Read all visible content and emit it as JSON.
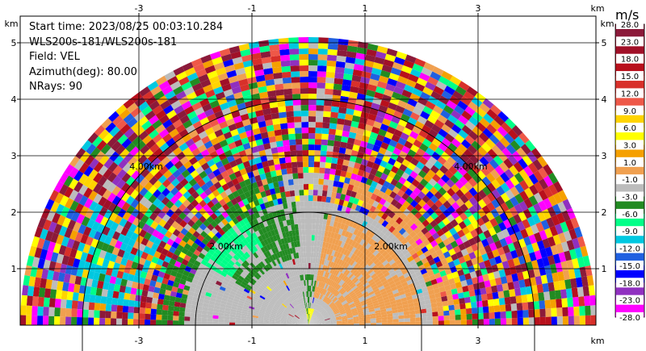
{
  "header": {
    "start_time": "Start time: 2023/08/25 00:03:10.284",
    "instrument": "WLS200s-181/WLS200s-181",
    "field": "Field: VEL",
    "azimuth": "Azimuth(deg): 80.00",
    "nrays": "NRays: 90"
  },
  "axes": {
    "unit": "km",
    "x_ticks": [
      "-3",
      "-1",
      "1",
      "3"
    ],
    "y_ticks": [
      "1",
      "2",
      "3",
      "4",
      "5"
    ]
  },
  "range_rings": [
    "2.00km",
    "2.00km",
    "4.00km",
    "4.00km"
  ],
  "colorbar": {
    "unit": "m/s",
    "levels": [
      {
        "label": "28.0",
        "color": "#8b1a3a"
      },
      {
        "label": "23.0",
        "color": "#a01028"
      },
      {
        "label": "18.0",
        "color": "#b8101c"
      },
      {
        "label": "15.0",
        "color": "#d8302a"
      },
      {
        "label": "12.0",
        "color": "#ee5848"
      },
      {
        "label": "9.0",
        "color": "#ffd400"
      },
      {
        "label": "6.0",
        "color": "#ffff00"
      },
      {
        "label": "3.0",
        "color": "#f5a000"
      },
      {
        "label": "1.0",
        "color": "#f0a050"
      },
      {
        "label": "-1.0",
        "color": "#bcbcbc"
      },
      {
        "label": "-3.0",
        "color": "#228b22"
      },
      {
        "label": "-6.0",
        "color": "#00ff88"
      },
      {
        "label": "-9.0",
        "color": "#00c8e0"
      },
      {
        "label": "-12.0",
        "color": "#2060e0"
      },
      {
        "label": "-15.0",
        "color": "#0000ff"
      },
      {
        "label": "-18.0",
        "color": "#9030c0"
      },
      {
        "label": "-23.0",
        "color": "#ff00ff"
      },
      {
        "label": "-28.0",
        "color": "#8b1a3a"
      }
    ]
  },
  "chart_data": {
    "type": "heatmap",
    "title": "",
    "xlabel": "km",
    "ylabel": "km",
    "xlim": [
      -3.8,
      4.2
    ],
    "ylim": [
      0,
      5.5
    ],
    "projection": "polar sector (PPI), azimuth 0-180 deg",
    "max_range_km": 5.05,
    "rings_km": [
      2.0,
      4.0
    ],
    "field": "VEL",
    "units": "m/s",
    "value_range": [
      -28.0,
      28.0
    ],
    "regions": [
      {
        "range_km": [
          0,
          2.2
        ],
        "dominant_value": -0.5,
        "note": "gray near-zero velocities"
      },
      {
        "range_km": [
          0.5,
          2.0
        ],
        "azimuth_deg": [
          0,
          80
        ],
        "dominant_value": 1.5,
        "note": "orange east side"
      },
      {
        "range_km": [
          1.2,
          2.6
        ],
        "azimuth_deg": [
          95,
          150
        ],
        "dominant_value": -4.0,
        "note": "green/teal west side"
      },
      {
        "range_km": [
          2.5,
          5.05
        ],
        "dominant_value": "noise",
        "note": "noisy full-range speckle"
      }
    ]
  }
}
